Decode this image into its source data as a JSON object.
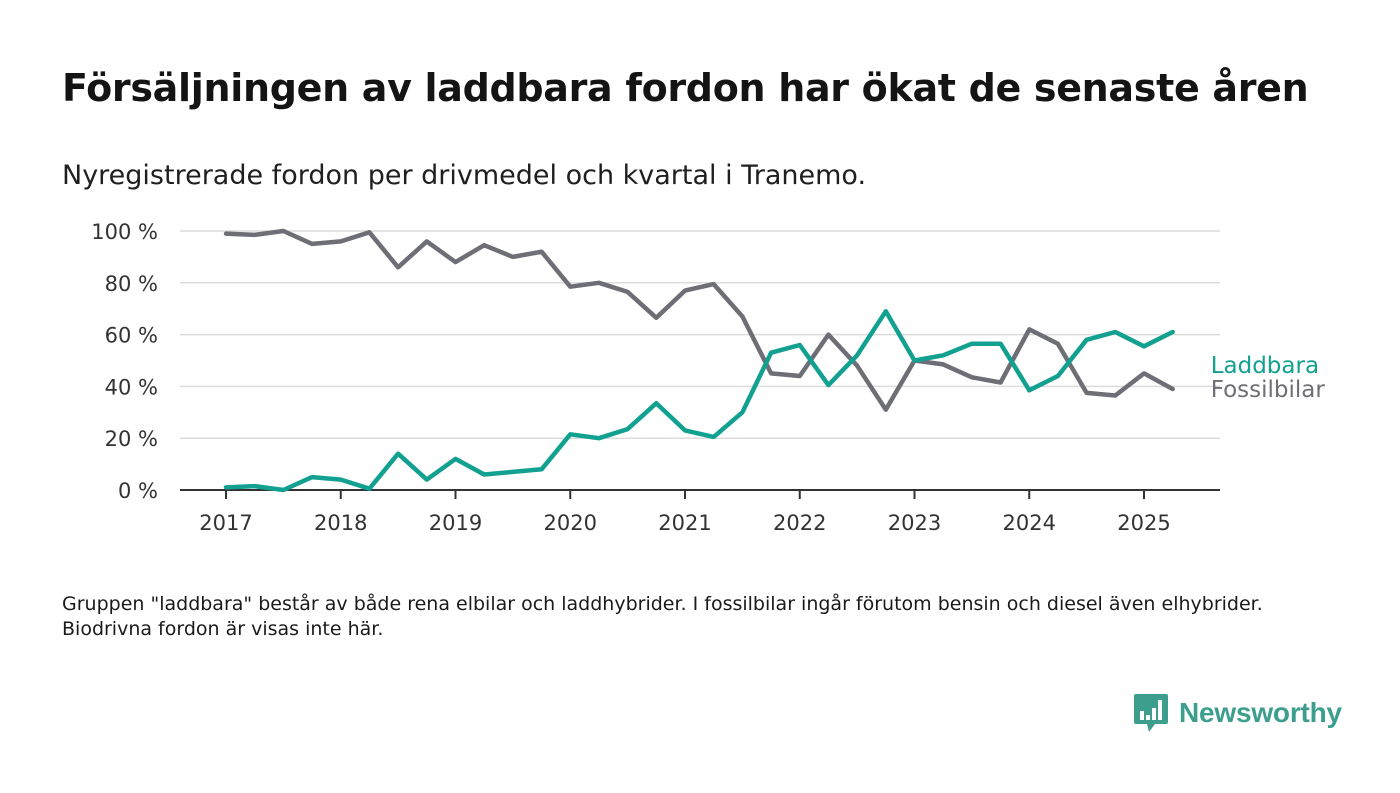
{
  "title": "Försäljningen av laddbara fordon har ökat de senaste åren",
  "subtitle": "Nyregistrerade fordon per drivmedel och kvartal i Tranemo.",
  "note": "Gruppen \"laddbara\" består av både rena elbilar och laddhybrider. I fossilbilar ingår förutom bensin och diesel även elhybrider. Biodrivna fordon är visas inte här.",
  "brand": {
    "name": "Newsworthy",
    "icon": "newsworthy-bar-chart-icon"
  },
  "chart_data": {
    "type": "line",
    "title": "Försäljningen av laddbara fordon har ökat de senaste åren",
    "subtitle": "Nyregistrerade fordon per drivmedel och kvartal i Tranemo.",
    "xlabel": "",
    "ylabel": "",
    "ylim": [
      0,
      100
    ],
    "yticks": [
      0,
      20,
      40,
      60,
      80,
      100
    ],
    "ytick_labels": [
      "0 %",
      "20 %",
      "40 %",
      "60 %",
      "80 %",
      "100 %"
    ],
    "xticks": [
      2017,
      2018,
      2019,
      2020,
      2021,
      2022,
      2023,
      2024,
      2025
    ],
    "xtick_labels": [
      "2017",
      "2018",
      "2019",
      "2020",
      "2021",
      "2022",
      "2023",
      "2024",
      "2025"
    ],
    "grid": true,
    "legend": "inline-right",
    "x": [
      2017.0,
      2017.25,
      2017.5,
      2017.75,
      2018.0,
      2018.25,
      2018.5,
      2018.75,
      2019.0,
      2019.25,
      2019.5,
      2019.75,
      2020.0,
      2020.25,
      2020.5,
      2020.75,
      2021.0,
      2021.25,
      2021.5,
      2021.75,
      2022.0,
      2022.25,
      2022.5,
      2022.75,
      2023.0,
      2023.25,
      2023.5,
      2023.75,
      2024.0,
      2024.25,
      2024.5,
      2024.75,
      2025.0,
      2025.25
    ],
    "series": [
      {
        "name": "Laddbara",
        "color": "#12a090",
        "values": [
          1,
          1.5,
          0,
          5,
          4,
          0.5,
          14,
          4,
          12,
          6,
          7,
          8,
          21.5,
          20,
          23.5,
          33.5,
          23,
          20.5,
          30,
          53,
          56,
          40.5,
          52,
          69,
          50,
          52,
          56.5,
          56.5,
          38.5,
          44,
          58,
          61,
          55.5,
          61
        ]
      },
      {
        "name": "Fossilbilar",
        "color": "#6e6e76",
        "values": [
          99,
          98.5,
          100,
          95,
          96,
          99.5,
          86,
          96,
          88,
          94.5,
          90,
          92,
          78.5,
          80,
          76.5,
          66.5,
          77,
          79.5,
          67,
          45,
          44,
          60,
          48,
          31,
          50,
          48.5,
          43.5,
          41.5,
          62,
          56.5,
          37.5,
          36.5,
          45,
          39
        ]
      }
    ]
  }
}
